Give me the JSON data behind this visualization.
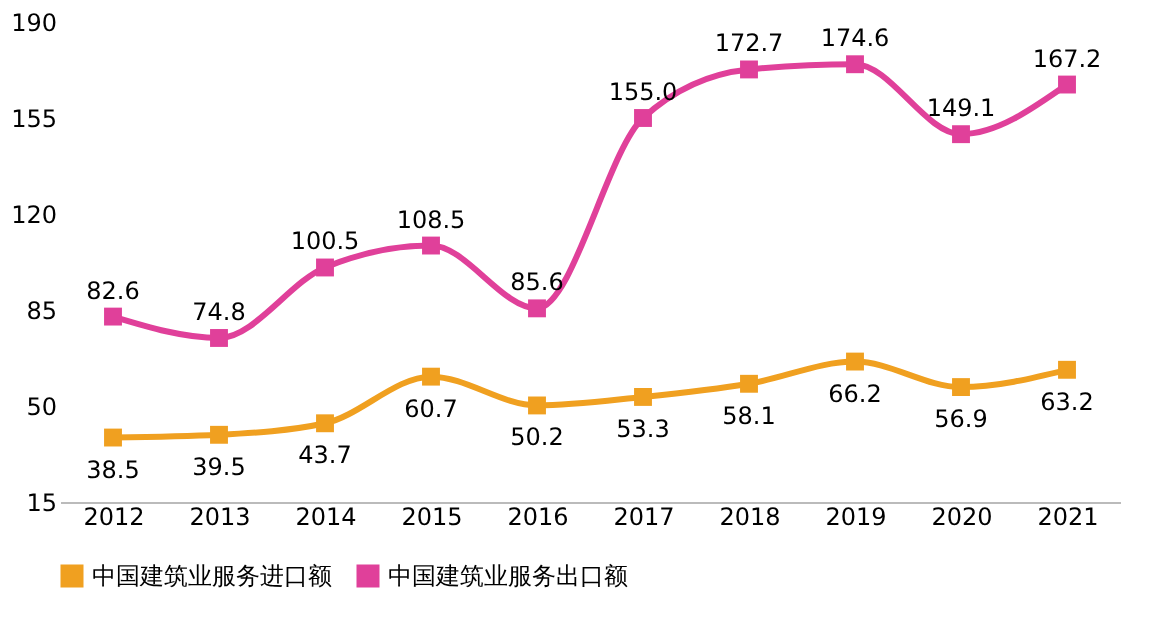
{
  "chart_data": {
    "type": "line",
    "categories": [
      "2012",
      "2013",
      "2014",
      "2015",
      "2016",
      "2017",
      "2018",
      "2019",
      "2020",
      "2021"
    ],
    "series": [
      {
        "name": "中国建筑业服务进口额",
        "color": "#f0a020",
        "values": [
          38.5,
          39.5,
          43.7,
          60.7,
          50.2,
          53.3,
          58.1,
          66.2,
          56.9,
          63.2
        ],
        "value_labels": [
          "38.5",
          "39.5",
          "43.7",
          "60.7",
          "50.2",
          "53.3",
          "58.1",
          "66.2",
          "56.9",
          "63.2"
        ]
      },
      {
        "name": "中国建筑业服务出口额",
        "color": "#e0409a",
        "values": [
          82.6,
          74.8,
          100.5,
          108.5,
          85.6,
          155.0,
          172.7,
          174.6,
          149.1,
          167.2
        ],
        "value_labels": [
          "82.6",
          "74.8",
          "100.5",
          "108.5",
          "85.6",
          "155.0",
          "172.7",
          "174.6",
          "149.1",
          "167.2"
        ]
      }
    ],
    "ylim": [
      15,
      190
    ],
    "yticks": [
      15,
      50,
      85,
      120,
      155,
      190
    ],
    "grid": false,
    "legend": "bottom",
    "marker": "square",
    "line_style": "solid"
  }
}
